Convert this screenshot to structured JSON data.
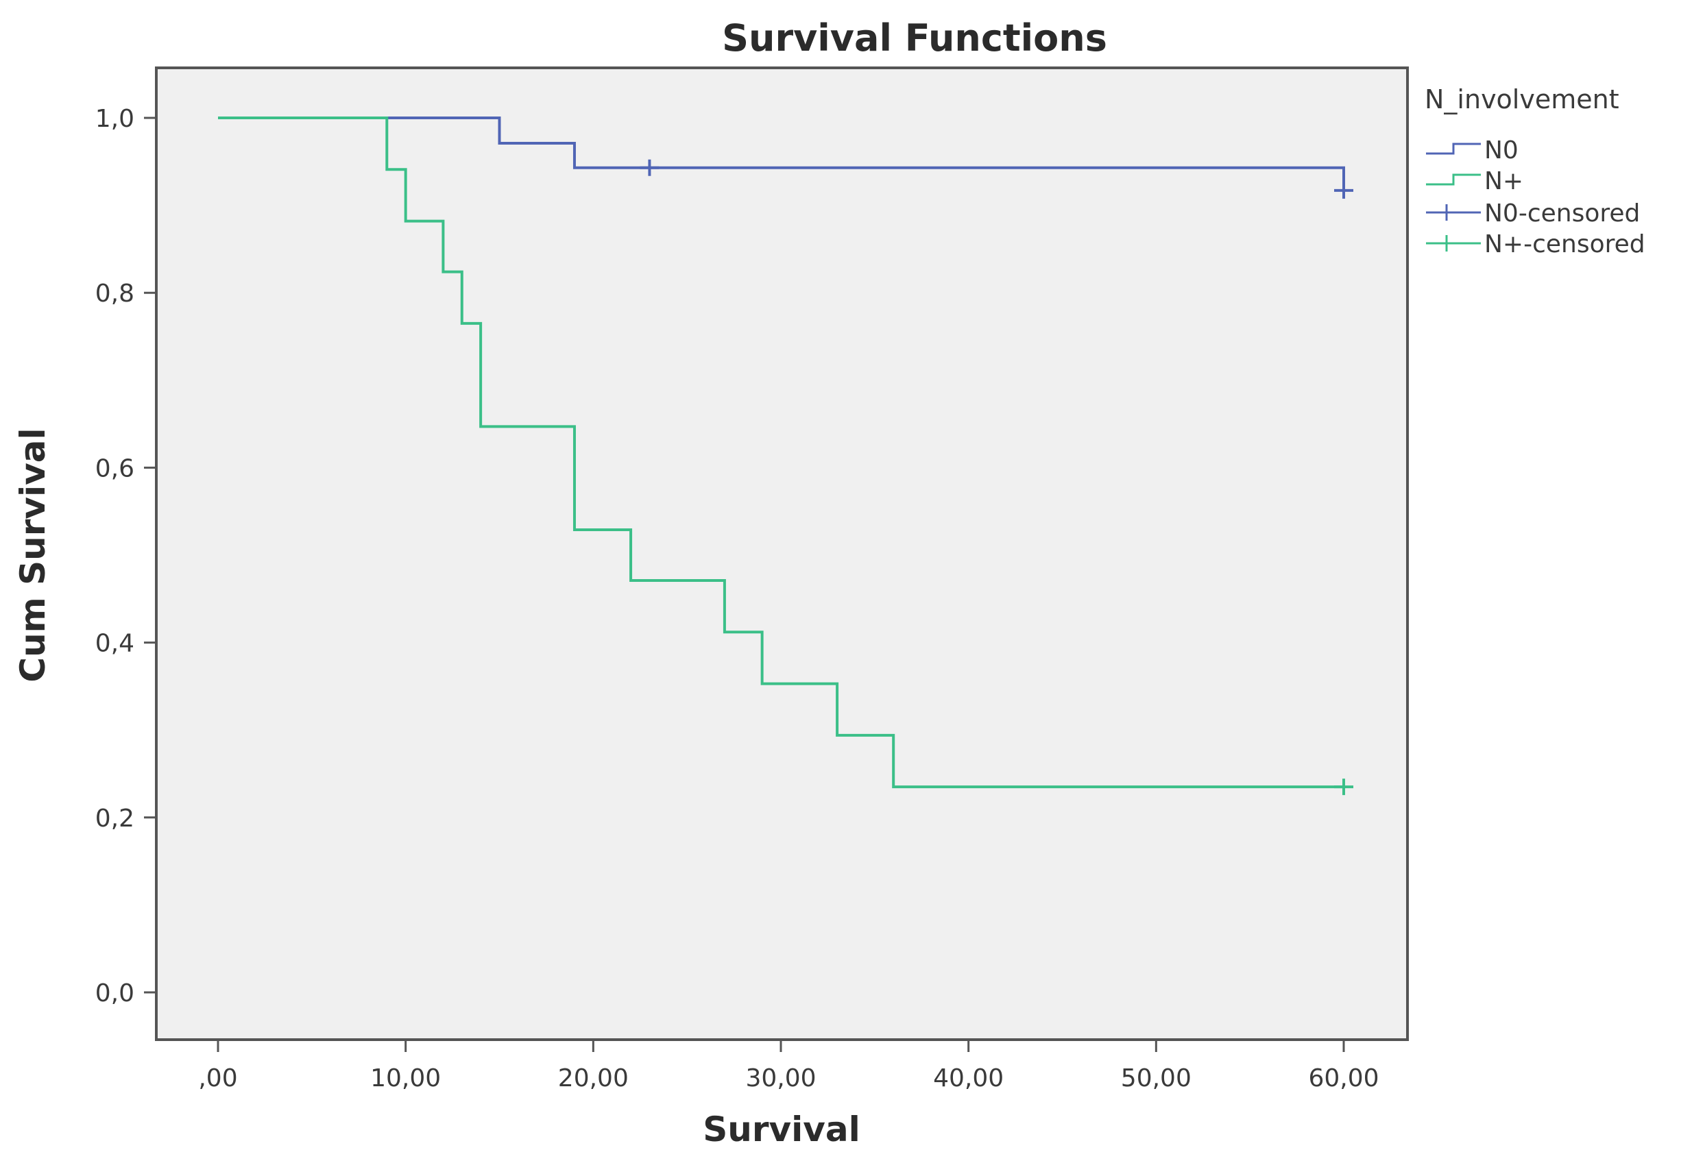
{
  "chart_data": {
    "type": "line",
    "title": "Survival Functions",
    "xlabel": "Survival",
    "ylabel": "Cum Survival",
    "xlim": [
      0,
      60
    ],
    "ylim": [
      0,
      1
    ],
    "x_ticks": [
      0,
      10,
      20,
      30,
      40,
      50,
      60
    ],
    "x_tick_labels": [
      ",00",
      "10,00",
      "20,00",
      "30,00",
      "40,00",
      "50,00",
      "60,00"
    ],
    "y_ticks": [
      0,
      0.2,
      0.4,
      0.6,
      0.8,
      1.0
    ],
    "y_tick_labels": [
      "0,0",
      "0,2",
      "0,4",
      "0,6",
      "0,8",
      "1,0"
    ],
    "grid": false,
    "legend_title": "N_involvement",
    "legend_position": "right",
    "legend_entries": [
      "N0",
      "N+",
      "N0-censored",
      "N+-censored"
    ],
    "series": [
      {
        "name": "N0",
        "color": "#5065b5",
        "step": true,
        "x": [
          0,
          15,
          19,
          60
        ],
        "y": [
          1.0,
          0.971,
          0.943,
          0.917
        ],
        "censored": [
          {
            "x": 23,
            "y": 0.943
          },
          {
            "x": 60,
            "y": 0.917
          }
        ]
      },
      {
        "name": "N+",
        "color": "#3bbf88",
        "step": true,
        "x": [
          0,
          9,
          10,
          12,
          13,
          14,
          19,
          22,
          27,
          29,
          33,
          36,
          60
        ],
        "y": [
          1.0,
          0.941,
          0.882,
          0.824,
          0.765,
          0.647,
          0.529,
          0.471,
          0.412,
          0.353,
          0.294,
          0.235,
          0.235
        ],
        "censored": [
          {
            "x": 60,
            "y": 0.235
          }
        ]
      }
    ]
  }
}
